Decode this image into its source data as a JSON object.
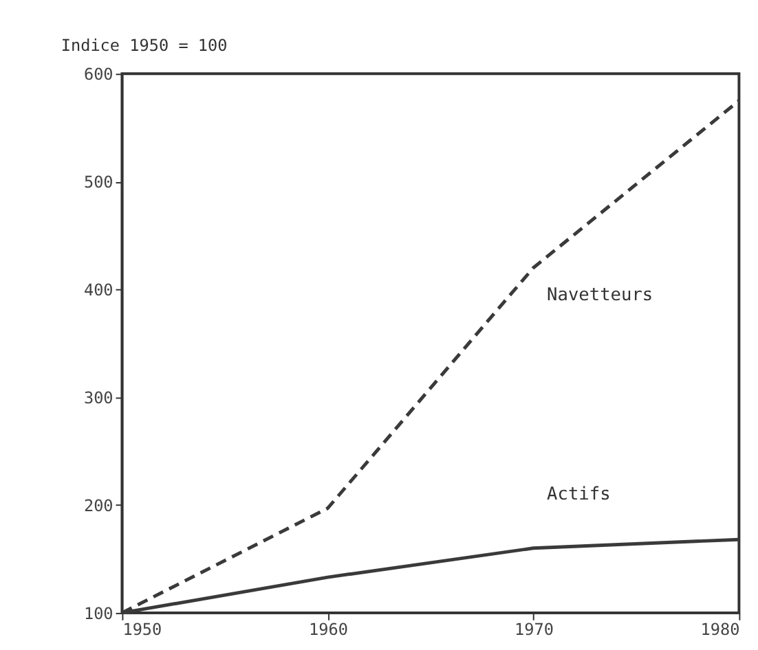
{
  "chart_data": {
    "type": "line",
    "ylabel": "Indice 1950 = 100",
    "x": [
      1950,
      1960,
      1970,
      1980
    ],
    "series": [
      {
        "name": "Navetteurs",
        "color": "#3a3a3a",
        "line_style": "dashed",
        "values": [
          100,
          197,
          420,
          575
        ]
      },
      {
        "name": "Actifs",
        "color": "#3a3a3a",
        "line_style": "solid",
        "values": [
          100,
          133,
          160,
          168
        ]
      }
    ],
    "xlim": [
      1950,
      1980
    ],
    "xticks": [
      1950,
      1960,
      1970,
      1980
    ],
    "ylim": [
      100,
      600
    ],
    "yticks": [
      100,
      200,
      300,
      400,
      500,
      600
    ],
    "grid": false,
    "marker": "none"
  }
}
